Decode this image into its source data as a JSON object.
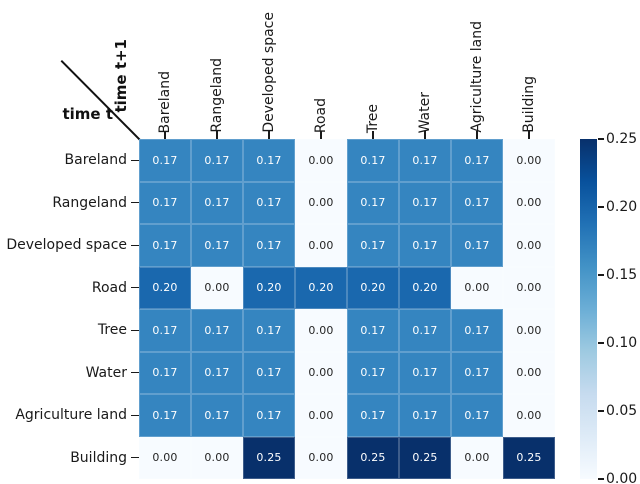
{
  "figure": {
    "row_axis_label": "time t",
    "col_axis_label": "time t+1"
  },
  "chart_data": {
    "type": "heatmap",
    "title": "",
    "xlabel": "time t+1",
    "ylabel": "time t",
    "x_categories": [
      "Bareland",
      "Rangeland",
      "Developed space",
      "Road",
      "Tree",
      "Water",
      "Agriculture land",
      "Building"
    ],
    "y_categories": [
      "Bareland",
      "Rangeland",
      "Developed space",
      "Road",
      "Tree",
      "Water",
      "Agriculture land",
      "Building"
    ],
    "values": [
      [
        0.17,
        0.17,
        0.17,
        0.0,
        0.17,
        0.17,
        0.17,
        0.0
      ],
      [
        0.17,
        0.17,
        0.17,
        0.0,
        0.17,
        0.17,
        0.17,
        0.0
      ],
      [
        0.17,
        0.17,
        0.17,
        0.0,
        0.17,
        0.17,
        0.17,
        0.0
      ],
      [
        0.2,
        0.0,
        0.2,
        0.2,
        0.2,
        0.2,
        0.0,
        0.0
      ],
      [
        0.17,
        0.17,
        0.17,
        0.0,
        0.17,
        0.17,
        0.17,
        0.0
      ],
      [
        0.17,
        0.17,
        0.17,
        0.0,
        0.17,
        0.17,
        0.17,
        0.0
      ],
      [
        0.17,
        0.17,
        0.17,
        0.0,
        0.17,
        0.17,
        0.17,
        0.0
      ],
      [
        0.0,
        0.0,
        0.25,
        0.0,
        0.25,
        0.25,
        0.0,
        0.25
      ]
    ],
    "vmin": 0.0,
    "vmax": 0.25,
    "colormap": "Blues",
    "colorbar_ticks": [
      0.25,
      0.2,
      0.15,
      0.1,
      0.05,
      0.0
    ],
    "colorbar_position": "right",
    "annotation_format": "two-decimals",
    "grid": false
  },
  "colors": {
    "value_colors": {
      "0.00": "#f7fbff",
      "0.17": "#3585c0",
      "0.20": "#1a68ae",
      "0.25": "#08306b"
    },
    "cell_text_light": "#ffffff",
    "cell_text_dark": "#262626",
    "axis_text": "#1a1a1a",
    "colorbar_gradient": [
      "#f7fbff",
      "#deebf7",
      "#c6dbef",
      "#9ecae1",
      "#6baed6",
      "#4292c6",
      "#2171b5",
      "#08519c",
      "#08306b"
    ]
  }
}
